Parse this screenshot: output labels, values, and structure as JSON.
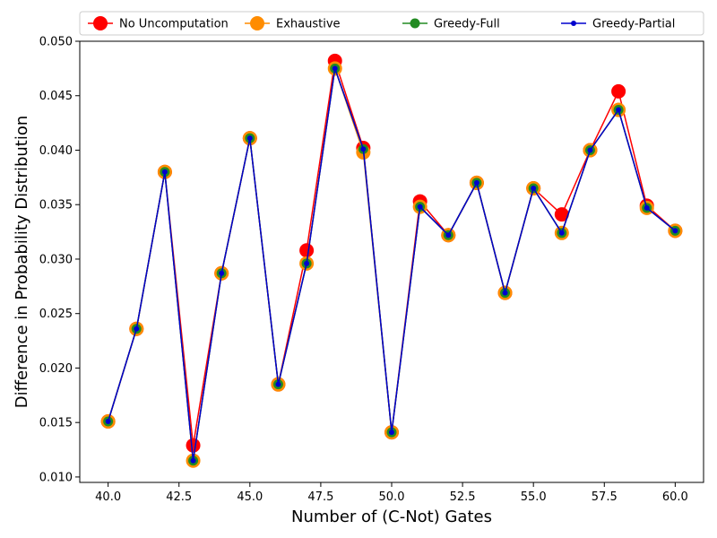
{
  "chart_data": {
    "type": "line",
    "title": "",
    "xlabel": "Number of (C-Not) Gates",
    "ylabel": "Difference in Probability Distribution",
    "xlim": [
      39.0,
      61.0
    ],
    "ylim": [
      0.0095,
      0.05
    ],
    "xticks": [
      40.0,
      42.5,
      45.0,
      47.5,
      50.0,
      52.5,
      55.0,
      57.5,
      60.0
    ],
    "xtick_labels": [
      "40.0",
      "42.5",
      "45.0",
      "47.5",
      "50.0",
      "52.5",
      "55.0",
      "57.5",
      "60.0"
    ],
    "yticks": [
      0.01,
      0.015,
      0.02,
      0.025,
      0.03,
      0.035,
      0.04,
      0.045,
      0.05
    ],
    "ytick_labels": [
      "0.010",
      "0.015",
      "0.020",
      "0.025",
      "0.030",
      "0.035",
      "0.040",
      "0.045",
      "0.050"
    ],
    "grid": false,
    "legend_position": "top",
    "x": [
      40,
      41,
      42,
      43,
      44,
      45,
      46,
      47,
      48,
      49,
      50,
      51,
      52,
      53,
      54,
      55,
      56,
      57,
      58,
      59,
      60
    ],
    "series": [
      {
        "name": "No Uncomputation",
        "color": "#ff0000",
        "values": [
          0.0151,
          0.0236,
          0.038,
          0.0129,
          0.0287,
          0.0411,
          0.0185,
          0.0308,
          0.0482,
          0.0402,
          0.0141,
          0.0353,
          0.0322,
          0.037,
          0.0269,
          0.0365,
          0.0341,
          0.04,
          0.0454,
          0.0349,
          0.0326
        ]
      },
      {
        "name": "Exhaustive",
        "color": "#ff8c00",
        "values": [
          0.0151,
          0.0236,
          0.038,
          0.0115,
          0.0287,
          0.0411,
          0.0185,
          0.0296,
          0.0475,
          0.0398,
          0.0141,
          0.0348,
          0.0322,
          0.037,
          0.0269,
          0.0365,
          0.0324,
          0.04,
          0.0437,
          0.0347,
          0.0326
        ]
      },
      {
        "name": "Greedy-Full",
        "color": "#228b22",
        "values": [
          0.0151,
          0.0236,
          0.038,
          0.0115,
          0.0287,
          0.0411,
          0.0185,
          0.0296,
          0.0475,
          0.0401,
          0.0141,
          0.0348,
          0.0322,
          0.037,
          0.0269,
          0.0365,
          0.0324,
          0.04,
          0.0437,
          0.0347,
          0.0326
        ]
      },
      {
        "name": "Greedy-Partial",
        "color": "#0000cd",
        "values": [
          0.0151,
          0.0236,
          0.038,
          0.0115,
          0.0287,
          0.0411,
          0.0185,
          0.0296,
          0.0475,
          0.0401,
          0.0141,
          0.0348,
          0.0322,
          0.037,
          0.0269,
          0.0365,
          0.0324,
          0.04,
          0.0437,
          0.0347,
          0.0326
        ]
      }
    ]
  }
}
